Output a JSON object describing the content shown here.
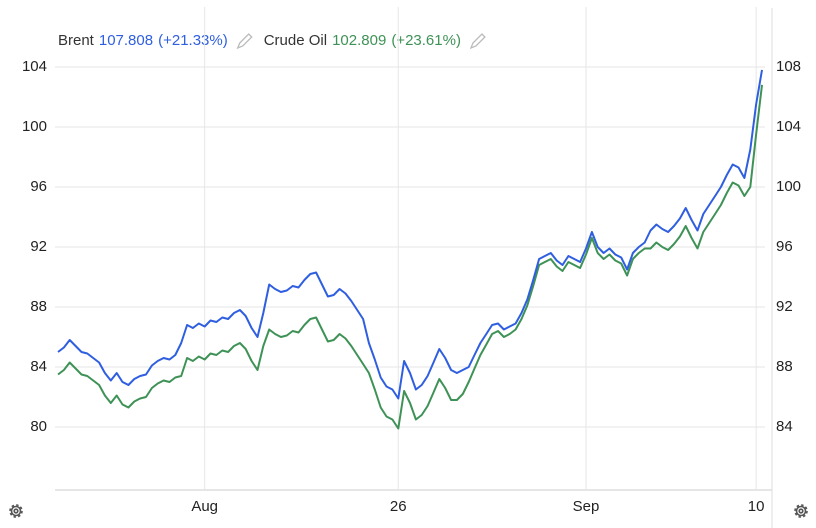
{
  "chart_data": {
    "type": "line",
    "categories": [
      null,
      null,
      null,
      null,
      null,
      null,
      null,
      null,
      null,
      null,
      null,
      null,
      null,
      null,
      null,
      null,
      null,
      null,
      null,
      null,
      null,
      null,
      null,
      null,
      null,
      "Aug",
      null,
      null,
      null,
      null,
      null,
      null,
      null,
      null,
      null,
      null,
      null,
      null,
      null,
      null,
      null,
      null,
      null,
      null,
      null,
      null,
      null,
      null,
      null,
      null,
      null,
      null,
      null,
      null,
      null,
      null,
      null,
      null,
      "26",
      null,
      null,
      null,
      null,
      null,
      null,
      null,
      null,
      null,
      null,
      null,
      null,
      null,
      null,
      null,
      null,
      null,
      null,
      null,
      null,
      null,
      null,
      null,
      null,
      null,
      null,
      null,
      null,
      null,
      null,
      null,
      "Sep",
      null,
      null,
      null,
      null,
      null,
      null,
      null,
      null,
      null,
      null,
      null,
      null,
      null,
      null,
      null,
      null,
      null,
      null,
      null,
      null,
      null,
      null,
      null,
      null,
      null,
      null,
      null,
      null,
      "10",
      null
    ],
    "series": [
      {
        "name": "Brent",
        "value_label": "107.808",
        "change": "(+21.33%)",
        "color": "#2f5fe0",
        "axis": "y2",
        "values": [
          89.0,
          89.3,
          89.8,
          89.4,
          89.0,
          88.9,
          88.6,
          88.3,
          87.6,
          87.1,
          87.6,
          87.0,
          86.8,
          87.2,
          87.4,
          87.5,
          88.1,
          88.4,
          88.6,
          88.5,
          88.8,
          89.6,
          90.8,
          90.6,
          90.9,
          90.7,
          91.1,
          91.0,
          91.3,
          91.2,
          91.6,
          91.8,
          91.4,
          90.6,
          90.0,
          91.6,
          93.5,
          93.2,
          93.0,
          93.1,
          93.4,
          93.3,
          93.8,
          94.2,
          94.3,
          93.5,
          92.7,
          92.8,
          93.2,
          92.9,
          92.4,
          91.8,
          91.2,
          89.6,
          88.5,
          87.3,
          86.7,
          86.5,
          85.9,
          88.4,
          87.6,
          86.5,
          86.8,
          87.4,
          88.3,
          89.2,
          88.6,
          87.8,
          87.6,
          87.8,
          88.0,
          88.8,
          89.6,
          90.2,
          90.8,
          90.9,
          90.5,
          90.7,
          90.9,
          91.6,
          92.5,
          93.8,
          95.2,
          95.4,
          95.6,
          95.1,
          94.8,
          95.4,
          95.2,
          95.0,
          95.9,
          97.0,
          96.0,
          95.6,
          95.9,
          95.5,
          95.3,
          94.5,
          95.6,
          96.0,
          96.3,
          97.1,
          97.5,
          97.2,
          97.0,
          97.4,
          97.9,
          98.6,
          97.8,
          97.1,
          98.2,
          98.8,
          99.4,
          100.0,
          100.8,
          101.5,
          101.3,
          100.6,
          102.5,
          105.5,
          107.808
        ]
      },
      {
        "name": "Crude Oil",
        "value_label": "102.809",
        "change": "(+23.61%)",
        "color": "#3f9257",
        "axis": "y",
        "values": [
          83.5,
          83.8,
          84.3,
          83.9,
          83.5,
          83.4,
          83.1,
          82.8,
          82.1,
          81.6,
          82.1,
          81.5,
          81.3,
          81.7,
          81.9,
          82.0,
          82.6,
          82.9,
          83.1,
          83.0,
          83.3,
          83.4,
          84.6,
          84.4,
          84.7,
          84.5,
          84.9,
          84.8,
          85.1,
          85.0,
          85.4,
          85.6,
          85.2,
          84.4,
          83.8,
          85.4,
          86.5,
          86.2,
          86.0,
          86.1,
          86.4,
          86.3,
          86.8,
          87.2,
          87.3,
          86.5,
          85.7,
          85.8,
          86.2,
          85.9,
          85.4,
          84.8,
          84.2,
          83.6,
          82.5,
          81.3,
          80.7,
          80.5,
          79.9,
          82.4,
          81.6,
          80.5,
          80.8,
          81.4,
          82.3,
          83.2,
          82.6,
          81.8,
          81.8,
          82.2,
          83.0,
          83.9,
          84.8,
          85.5,
          86.2,
          86.4,
          86.0,
          86.2,
          86.5,
          87.2,
          88.1,
          89.4,
          90.8,
          91.0,
          91.2,
          90.7,
          90.4,
          91.0,
          90.8,
          90.6,
          91.5,
          92.6,
          91.6,
          91.2,
          91.5,
          91.1,
          90.9,
          90.1,
          91.2,
          91.6,
          91.9,
          91.9,
          92.3,
          92.0,
          91.8,
          92.2,
          92.7,
          93.4,
          92.6,
          91.9,
          93.0,
          93.6,
          94.2,
          94.8,
          95.6,
          96.3,
          96.1,
          95.4,
          96.0,
          99.5,
          102.809
        ]
      }
    ],
    "ylim": [
      76,
      108
    ],
    "yticks": [
      80,
      84,
      88,
      92,
      96,
      100,
      104
    ],
    "y2lim": [
      80,
      112
    ],
    "y2ticks": [
      84,
      88,
      92,
      96,
      100,
      104,
      108
    ],
    "grid": true
  }
}
